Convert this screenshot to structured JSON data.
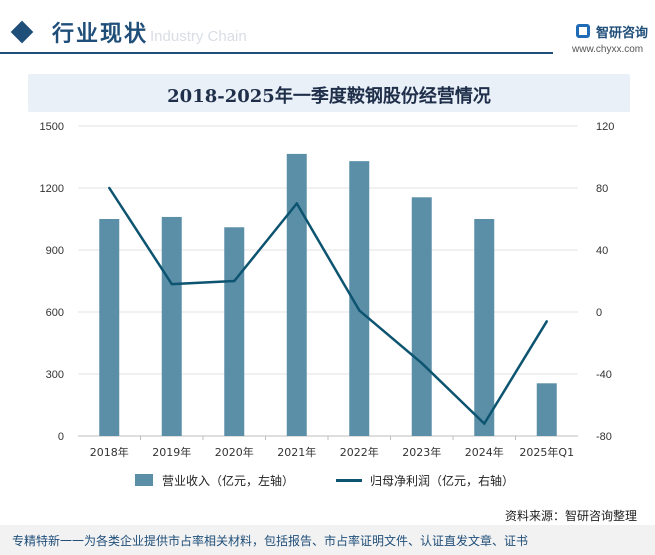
{
  "header": {
    "section_title": "行业现状",
    "watermark_text": "Industry Chain",
    "brand_name": "智研咨询",
    "brand_url": "www.chyxx.com"
  },
  "chart_title": "2018-2025年一季度鞍钢股份经营情况",
  "colors": {
    "bar": "#5b8fa8",
    "line": "#0d5470",
    "accent": "#1f4e79",
    "title_bg": "#e9f0f8"
  },
  "chart_data": {
    "type": "bar",
    "title": "2018-2025年一季度鞍钢股份经营情况",
    "categories": [
      "2018年",
      "2019年",
      "2020年",
      "2021年",
      "2022年",
      "2023年",
      "2024年",
      "2025年Q1"
    ],
    "series": [
      {
        "name": "营业收入（亿元，左轴）",
        "type": "bar",
        "axis": "left",
        "values": [
          1050,
          1060,
          1010,
          1365,
          1330,
          1155,
          1050,
          255
        ]
      },
      {
        "name": "归母净利润（亿元，右轴）",
        "type": "line",
        "axis": "right",
        "values": [
          80,
          18,
          20,
          70,
          1,
          -33,
          -72,
          -6
        ]
      }
    ],
    "y_left": {
      "min": 0,
      "max": 1500,
      "ticks": [
        0,
        300,
        600,
        900,
        1200,
        1500
      ]
    },
    "y_right": {
      "min": -80,
      "max": 120,
      "ticks": [
        -80,
        -40,
        0,
        40,
        80,
        120
      ]
    },
    "grid": true,
    "legend_position": "bottom"
  },
  "legend": {
    "bar_label": "营业收入（亿元，左轴）",
    "line_label": "归母净利润（亿元，右轴）"
  },
  "source": "资料来源：智研咨询整理",
  "footer": "专精特新一一为各类企业提供市占率相关材料，包括报告、市占率证明文件、认证直发文章、证书"
}
